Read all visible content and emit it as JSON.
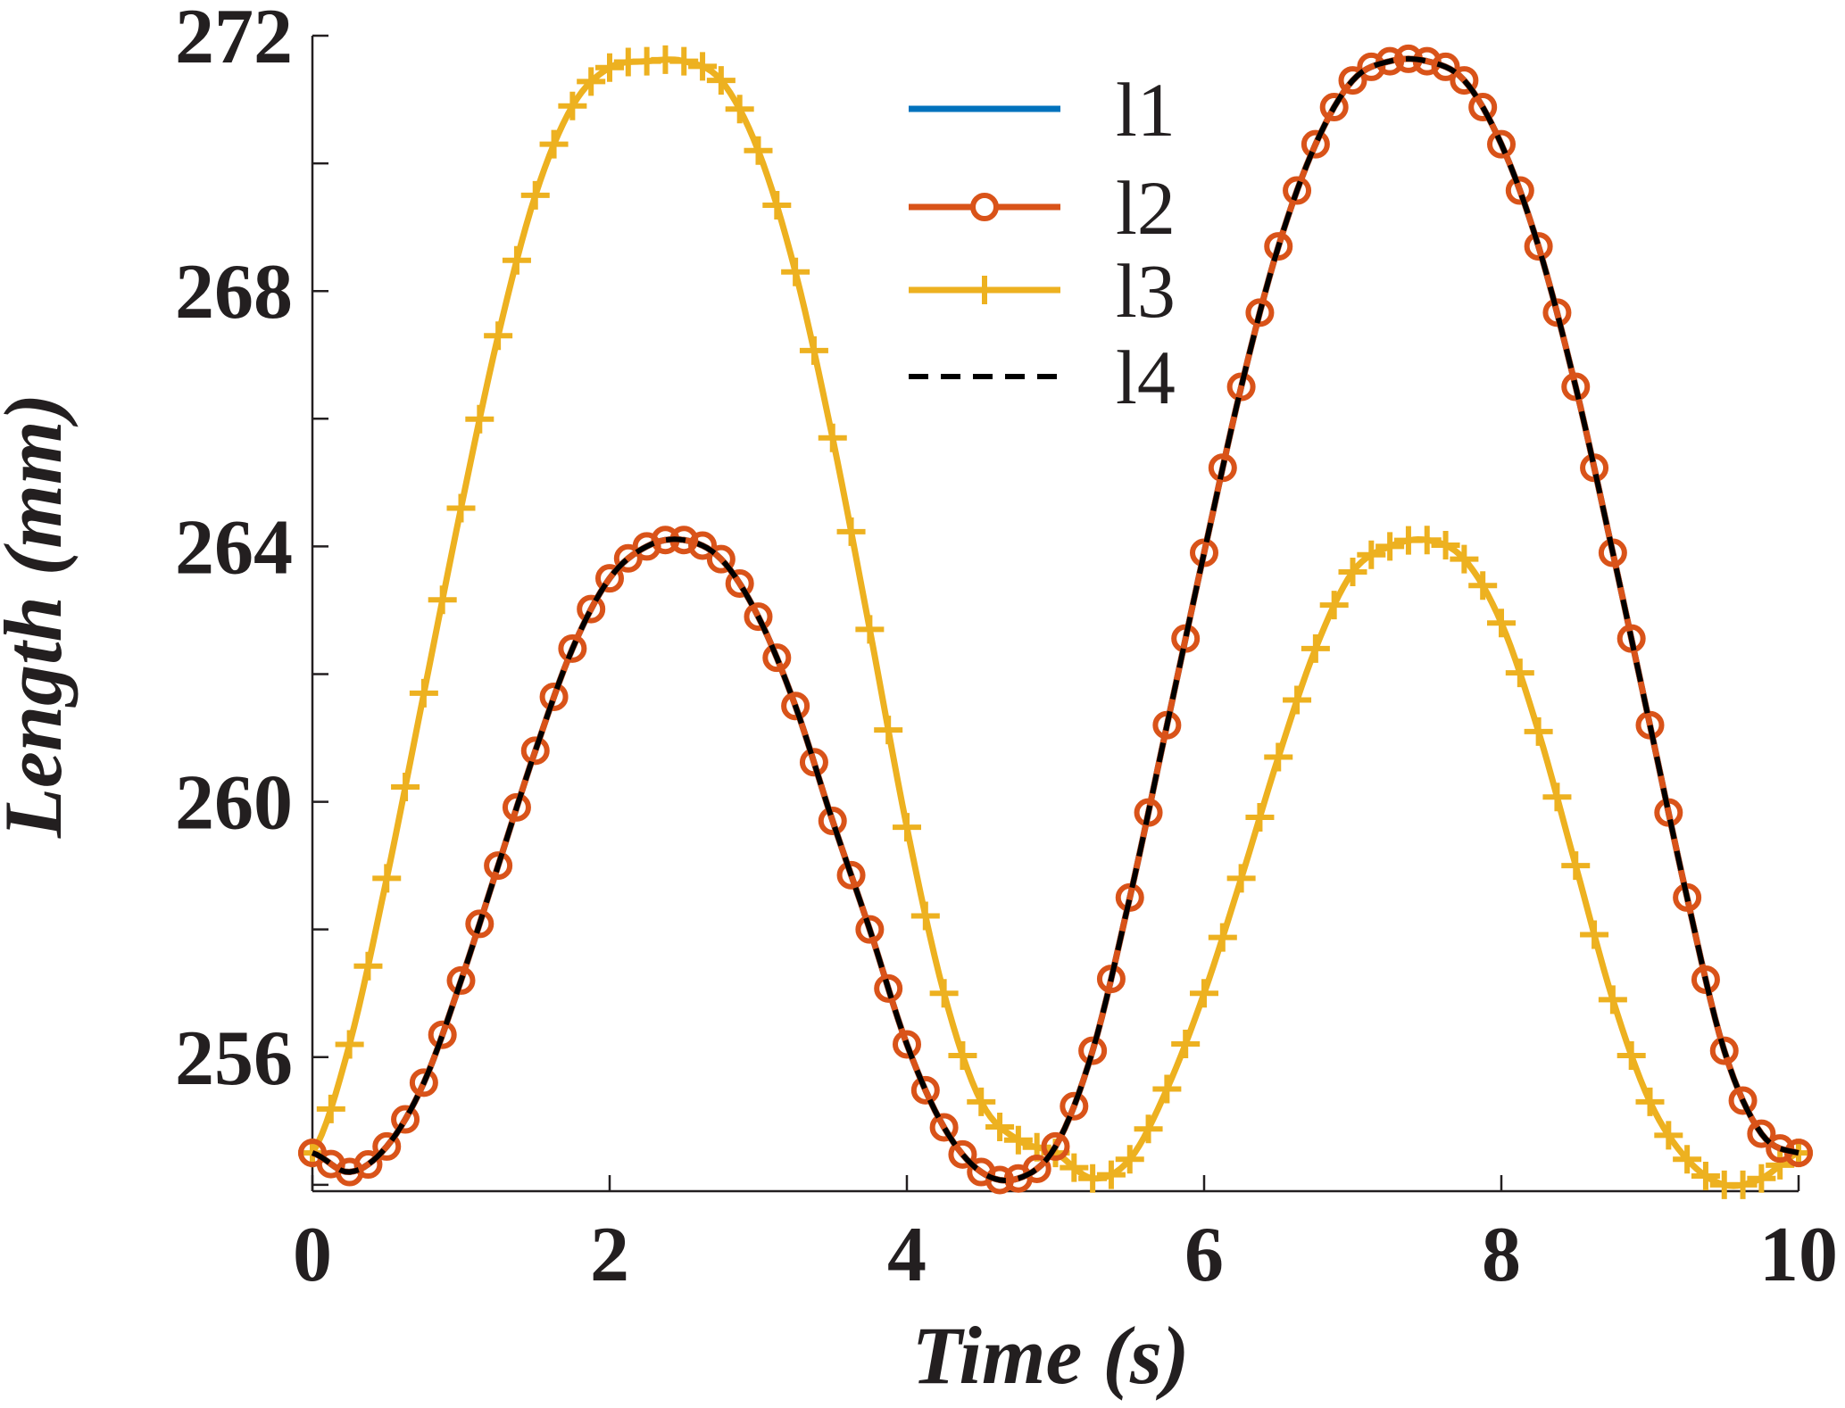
{
  "chart_data": {
    "type": "line",
    "title": "",
    "xlabel": "Time (s)",
    "ylabel": "Length (mm)",
    "xlim": [
      0,
      10
    ],
    "ylim": [
      253.9,
      272
    ],
    "xticks": [
      0,
      2,
      4,
      6,
      8,
      10
    ],
    "xtick_labels": [
      "0",
      "2",
      "4",
      "6",
      "8",
      "10"
    ],
    "yticks": [
      254,
      256,
      258,
      260,
      262,
      264,
      266,
      268,
      270,
      272
    ],
    "ytick_labels": [
      "",
      "256",
      "",
      "260",
      "",
      "264",
      "",
      "268",
      "",
      "272"
    ],
    "grid": false,
    "legend_position": "top-center",
    "x": [
      0,
      0.25,
      0.5,
      0.75,
      1,
      1.25,
      1.5,
      1.75,
      2,
      2.25,
      2.5,
      2.75,
      3,
      3.25,
      3.5,
      3.75,
      4,
      4.25,
      4.5,
      4.75,
      5,
      5.25,
      5.5,
      5.75,
      6,
      6.25,
      6.5,
      6.75,
      7,
      7.25,
      7.5,
      7.75,
      8,
      8.25,
      8.5,
      8.75,
      9,
      9.25,
      9.5,
      9.75,
      10
    ],
    "series": [
      {
        "name": "l1",
        "color": "#0072bd",
        "marker": "none",
        "dash": "solid",
        "values": [
          254.5,
          254.2,
          254.6,
          255.6,
          257.2,
          259.0,
          260.8,
          262.4,
          263.5,
          264.0,
          264.1,
          263.8,
          262.9,
          261.5,
          259.7,
          258.0,
          256.2,
          254.9,
          254.2,
          254.1,
          254.6,
          256.1,
          258.5,
          261.2,
          263.9,
          266.5,
          268.7,
          270.3,
          271.3,
          271.6,
          271.6,
          271.3,
          270.3,
          268.7,
          266.5,
          263.9,
          261.2,
          258.5,
          256.1,
          254.8,
          254.5
        ]
      },
      {
        "name": "l2",
        "color": "#d95319",
        "marker": "circle",
        "dash": "solid",
        "values": [
          254.5,
          254.2,
          254.6,
          255.6,
          257.2,
          259.0,
          260.8,
          262.4,
          263.5,
          264.0,
          264.1,
          263.8,
          262.9,
          261.5,
          259.7,
          258.0,
          256.2,
          254.9,
          254.2,
          254.1,
          254.6,
          256.1,
          258.5,
          261.2,
          263.9,
          266.5,
          268.7,
          270.3,
          271.3,
          271.6,
          271.6,
          271.3,
          270.3,
          268.7,
          266.5,
          263.9,
          261.2,
          258.5,
          256.1,
          254.8,
          254.5
        ]
      },
      {
        "name": "l3",
        "color": "#edb120",
        "marker": "plus",
        "dash": "solid",
        "values": [
          254.5,
          256.2,
          258.8,
          261.7,
          264.6,
          267.3,
          269.5,
          270.9,
          271.5,
          271.6,
          271.6,
          271.3,
          270.2,
          268.3,
          265.7,
          262.7,
          259.6,
          257.0,
          255.3,
          254.7,
          254.5,
          254.1,
          254.4,
          255.5,
          257.0,
          258.8,
          260.7,
          262.4,
          263.6,
          264.0,
          264.1,
          263.8,
          262.8,
          261.1,
          259.0,
          256.9,
          255.3,
          254.4,
          254.0,
          254.1,
          254.5
        ]
      },
      {
        "name": "l4",
        "color": "#000000",
        "marker": "none",
        "dash": "dashed",
        "values": [
          254.5,
          254.2,
          254.6,
          255.6,
          257.2,
          259.0,
          260.8,
          262.4,
          263.5,
          264.0,
          264.1,
          263.8,
          262.9,
          261.5,
          259.7,
          258.0,
          256.2,
          254.9,
          254.2,
          254.1,
          254.6,
          256.1,
          258.5,
          261.2,
          263.9,
          266.5,
          268.7,
          270.3,
          271.3,
          271.6,
          271.6,
          271.3,
          270.3,
          268.7,
          266.5,
          263.9,
          261.2,
          258.5,
          256.1,
          254.8,
          254.5
        ]
      }
    ]
  }
}
